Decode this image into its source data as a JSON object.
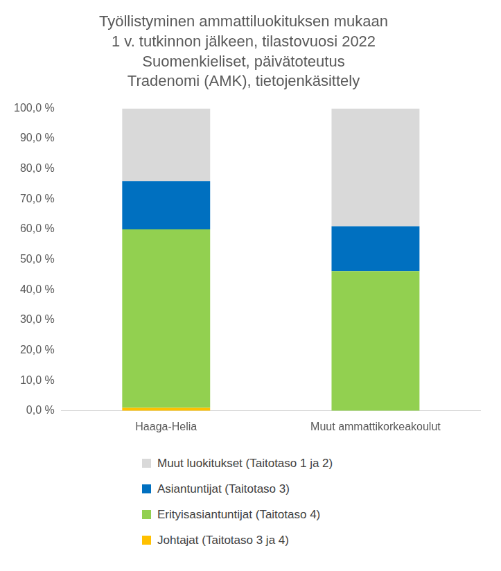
{
  "chart_data": {
    "type": "bar",
    "title": [
      "Työllistyminen ammattiluokituksen mukaan",
      "1 v. tutkinnon jälkeen, tilastovuosi 2022",
      "Suomenkieliset, päivätoteutus",
      "Tradenomi (AMK), tietojenkäsittely"
    ],
    "categories": [
      "Haaga-Helia",
      "Muut ammattikorkeakoulut"
    ],
    "series": [
      {
        "name": "Johtajat (Taitotaso 3 ja 4)",
        "color": "#ffc000",
        "values": [
          1.0,
          0.0
        ]
      },
      {
        "name": "Erityisasiantuntijat (Taitotaso 4)",
        "color": "#92d050",
        "values": [
          59.0,
          46.2
        ]
      },
      {
        "name": "Asiantuntijat (Taitotaso 3)",
        "color": "#0070c0",
        "values": [
          16.0,
          14.8
        ]
      },
      {
        "name": "Muut luokitukset (Taitotaso 1 ja 2)",
        "color": "#d9d9d9",
        "values": [
          24.0,
          39.0
        ]
      }
    ],
    "stacked": true,
    "ylim": [
      0,
      100
    ],
    "yticks": [
      {
        "value": 0,
        "label": "0,0 %"
      },
      {
        "value": 10,
        "label": "10,0 %"
      },
      {
        "value": 20,
        "label": "20,0 %"
      },
      {
        "value": 30,
        "label": "30,0 %"
      },
      {
        "value": 40,
        "label": "40,0 %"
      },
      {
        "value": 50,
        "label": "50,0 %"
      },
      {
        "value": 60,
        "label": "60,0 %"
      },
      {
        "value": 70,
        "label": "70,0 %"
      },
      {
        "value": 80,
        "label": "80,0 %"
      },
      {
        "value": 90,
        "label": "90,0 %"
      },
      {
        "value": 100,
        "label": "100,0 %"
      }
    ],
    "grid": false,
    "legend": "bottom"
  }
}
